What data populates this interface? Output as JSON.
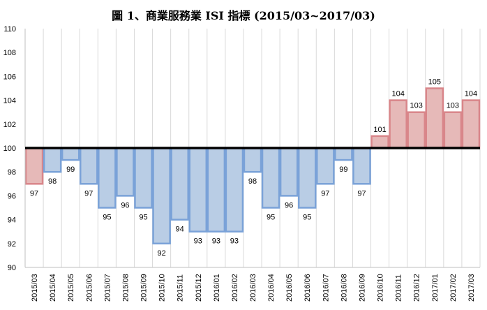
{
  "chart_data": {
    "type": "bar",
    "title": "圖 1、商業服務業 ISI 指標 (2015/03~2017/03)",
    "xlabel": "",
    "ylabel": "",
    "ylim": [
      90,
      110
    ],
    "yticks": [
      90,
      92,
      94,
      96,
      98,
      100,
      102,
      104,
      106,
      108,
      110
    ],
    "baseline": 100,
    "grid": "vertical",
    "legend": "none",
    "categories": [
      "2015/03",
      "2015/04",
      "2015/05",
      "2015/06",
      "2015/07",
      "2015/08",
      "2015/09",
      "2015/10",
      "2015/11",
      "2015/12",
      "2016/01",
      "2016/02",
      "2016/03",
      "2016/04",
      "2016/05",
      "2016/06",
      "2016/07",
      "2016/08",
      "2016/09",
      "2016/10",
      "2016/11",
      "2016/12",
      "2017/01",
      "2017/02",
      "2017/03"
    ],
    "values": [
      97,
      98,
      99,
      97,
      95,
      96,
      95,
      92,
      94,
      93,
      93,
      93,
      98,
      95,
      96,
      95,
      97,
      99,
      97,
      101,
      104,
      103,
      105,
      103,
      104
    ],
    "colors": {
      "above_fill": "#e6b9b8",
      "above_stroke": "#d9868a",
      "below_fill": "#b9cde5",
      "below_stroke": "#7aa2d8",
      "highlight_fill": "#e6b9b8",
      "highlight_stroke": "#d9868a",
      "baseline": "#000000",
      "grid": "#d9d9d9"
    },
    "highlight_index": [
      0
    ]
  }
}
